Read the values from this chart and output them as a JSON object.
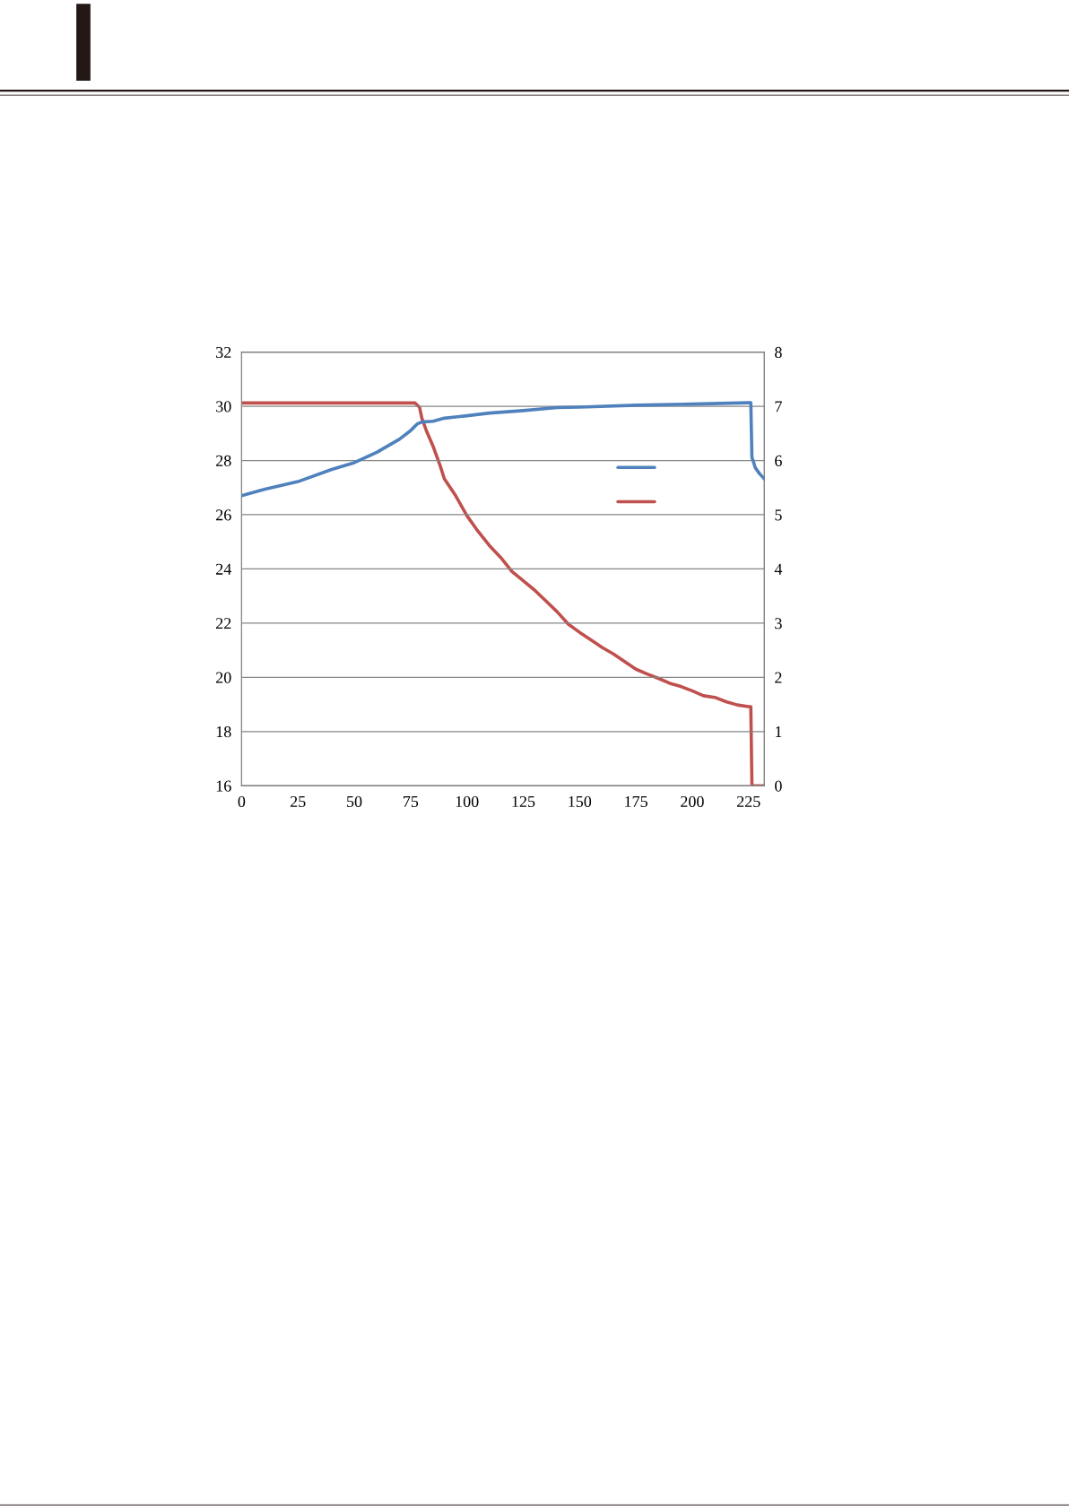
{
  "chart_data": {
    "type": "line",
    "xlim": [
      0,
      232
    ],
    "xticks": [
      0,
      25,
      50,
      75,
      100,
      125,
      150,
      175,
      200,
      225
    ],
    "ylim": [
      16,
      32
    ],
    "yticks": [
      16,
      18,
      20,
      22,
      24,
      26,
      28,
      30,
      32
    ],
    "y2lim": [
      0,
      8
    ],
    "y2ticks": [
      0,
      1,
      2,
      3,
      4,
      5,
      6,
      7,
      8
    ],
    "grid": "y",
    "marker": "none",
    "line_style": "solid",
    "series": [
      {
        "color": "#4f81bd",
        "x": [
          0,
          10,
          25,
          40,
          50,
          60,
          70,
          75,
          77,
          78,
          80,
          85,
          90,
          100,
          110,
          125,
          140,
          150,
          175,
          200,
          225,
          226,
          226.5,
          227,
          228,
          230,
          232
        ],
        "values": [
          26.7,
          26.93,
          27.22,
          27.67,
          27.92,
          28.3,
          28.78,
          29.1,
          29.27,
          29.35,
          29.42,
          29.45,
          29.56,
          29.65,
          29.75,
          29.84,
          29.95,
          29.97,
          30.04,
          30.08,
          30.13,
          30.13,
          28.1,
          28.0,
          27.73,
          27.5,
          27.32
        ]
      },
      {
        "color": "#c0504d",
        "axis": "y2",
        "x": [
          0,
          77,
          79,
          80,
          82,
          85,
          88,
          90,
          95,
          100,
          105,
          110,
          115,
          120,
          125,
          130,
          135,
          140,
          145,
          150,
          155,
          160,
          165,
          170,
          175,
          180,
          185,
          190,
          195,
          200,
          205,
          210,
          215,
          220,
          225,
          226,
          226.5,
          232
        ],
        "values": [
          7.06,
          7.06,
          6.98,
          6.78,
          6.55,
          6.26,
          5.92,
          5.66,
          5.35,
          4.98,
          4.69,
          4.43,
          4.21,
          3.95,
          3.78,
          3.61,
          3.41,
          3.21,
          2.98,
          2.83,
          2.69,
          2.55,
          2.43,
          2.29,
          2.15,
          2.06,
          1.98,
          1.89,
          1.83,
          1.75,
          1.66,
          1.63,
          1.55,
          1.49,
          1.46,
          1.46,
          0,
          0
        ]
      }
    ]
  }
}
